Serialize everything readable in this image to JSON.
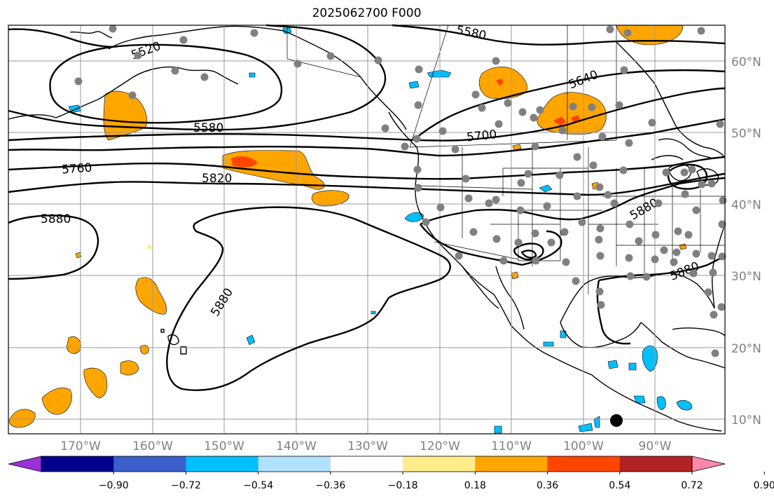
{
  "title": "2025062700 F000",
  "lat_ticks": [
    {
      "label": "60°N"
    },
    {
      "label": "50°N"
    },
    {
      "label": "40°N"
    },
    {
      "label": "30°N"
    },
    {
      "label": "20°N"
    },
    {
      "label": "10°N"
    }
  ],
  "lon_ticks": [
    {
      "label": "170°W"
    },
    {
      "label": "160°W"
    },
    {
      "label": "150°W"
    },
    {
      "label": "140°W"
    },
    {
      "label": "130°W"
    },
    {
      "label": "120°W"
    },
    {
      "label": "110°W"
    },
    {
      "label": "100°W"
    },
    {
      "label": "90°W"
    }
  ],
  "contour_labels": [
    {
      "text": "5520"
    },
    {
      "text": "5580"
    },
    {
      "text": "5580"
    },
    {
      "text": "5640"
    },
    {
      "text": "5700"
    },
    {
      "text": "5760"
    },
    {
      "text": "5820"
    },
    {
      "text": "5880"
    },
    {
      "text": "5880"
    },
    {
      "text": "5880"
    },
    {
      "text": "5880"
    }
  ],
  "colorbar": {
    "colors": [
      "#9b30d9",
      "#00008b",
      "#3a5fcd",
      "#00bfff",
      "#b0e2ff",
      "#ffffff",
      "#ffec8b",
      "#ffa500",
      "#ff4500",
      "#b22222",
      "#ff88aa"
    ],
    "labels": [
      "−0.90",
      "−0.72",
      "−0.54",
      "−0.36",
      "−0.18",
      "0.18",
      "0.36",
      "0.54",
      "0.72",
      "0.90"
    ]
  },
  "shading_colors": {
    "orange": "#ffa500",
    "red": "#ff4500",
    "cyan": "#00bfff",
    "yellow": "#ffec8b"
  },
  "station_color": "#808080"
}
